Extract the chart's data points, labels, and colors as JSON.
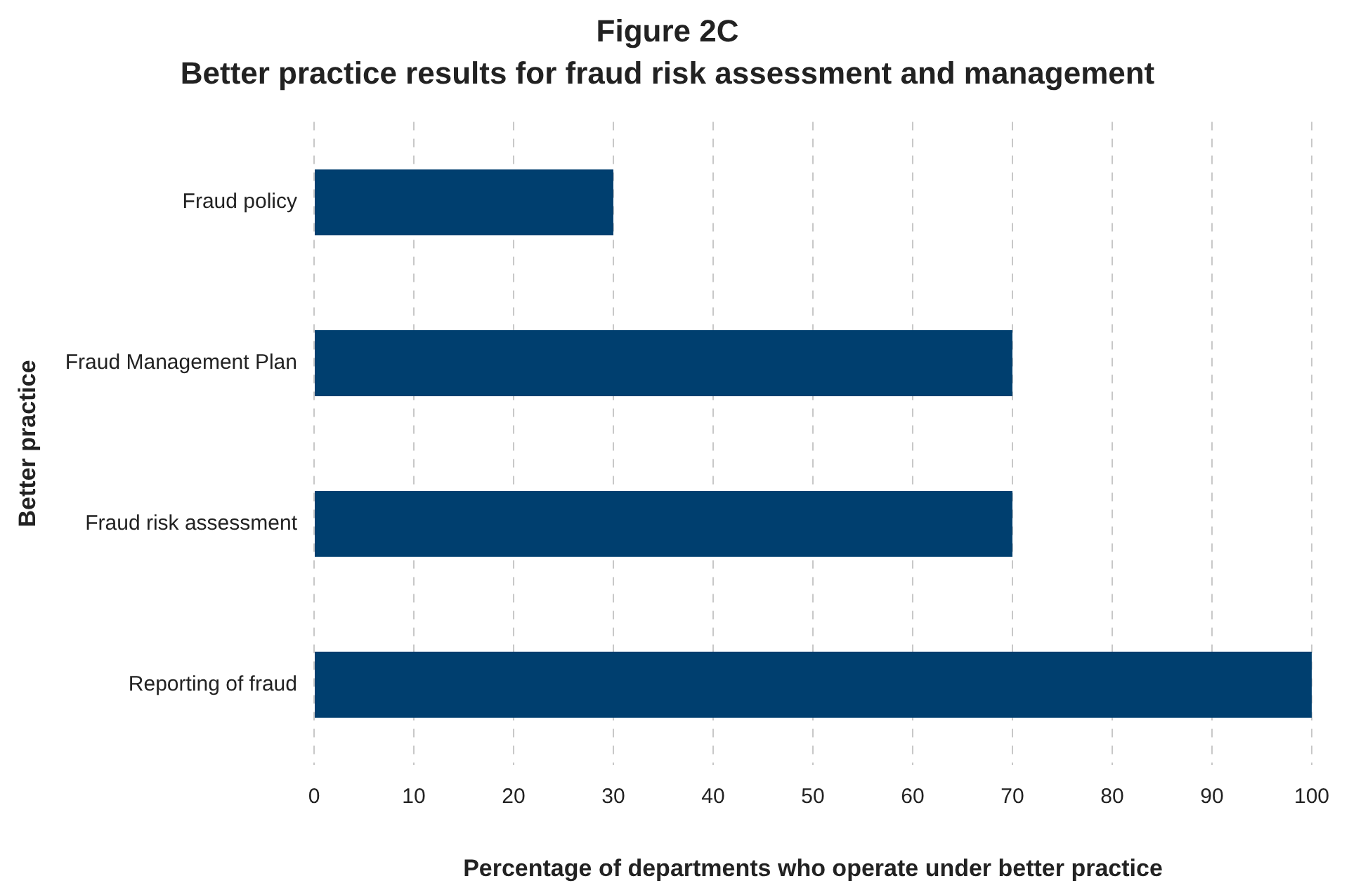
{
  "chart_data": {
    "type": "bar",
    "orientation": "horizontal",
    "title": "Figure 2C",
    "subtitle": "Better practice results for fraud risk assessment and management",
    "xlabel": "Percentage of departments who operate under better practice",
    "ylabel": "Better practice",
    "categories": [
      "Fraud policy",
      "Fraud Management Plan",
      "Fraud risk assessment",
      "Reporting of fraud"
    ],
    "values": [
      30,
      70,
      70,
      100
    ],
    "color": "#003f6f",
    "xlim": [
      0,
      100
    ],
    "xticks": [
      0,
      10,
      20,
      30,
      40,
      50,
      60,
      70,
      80,
      90,
      100
    ],
    "grid": "x"
  }
}
